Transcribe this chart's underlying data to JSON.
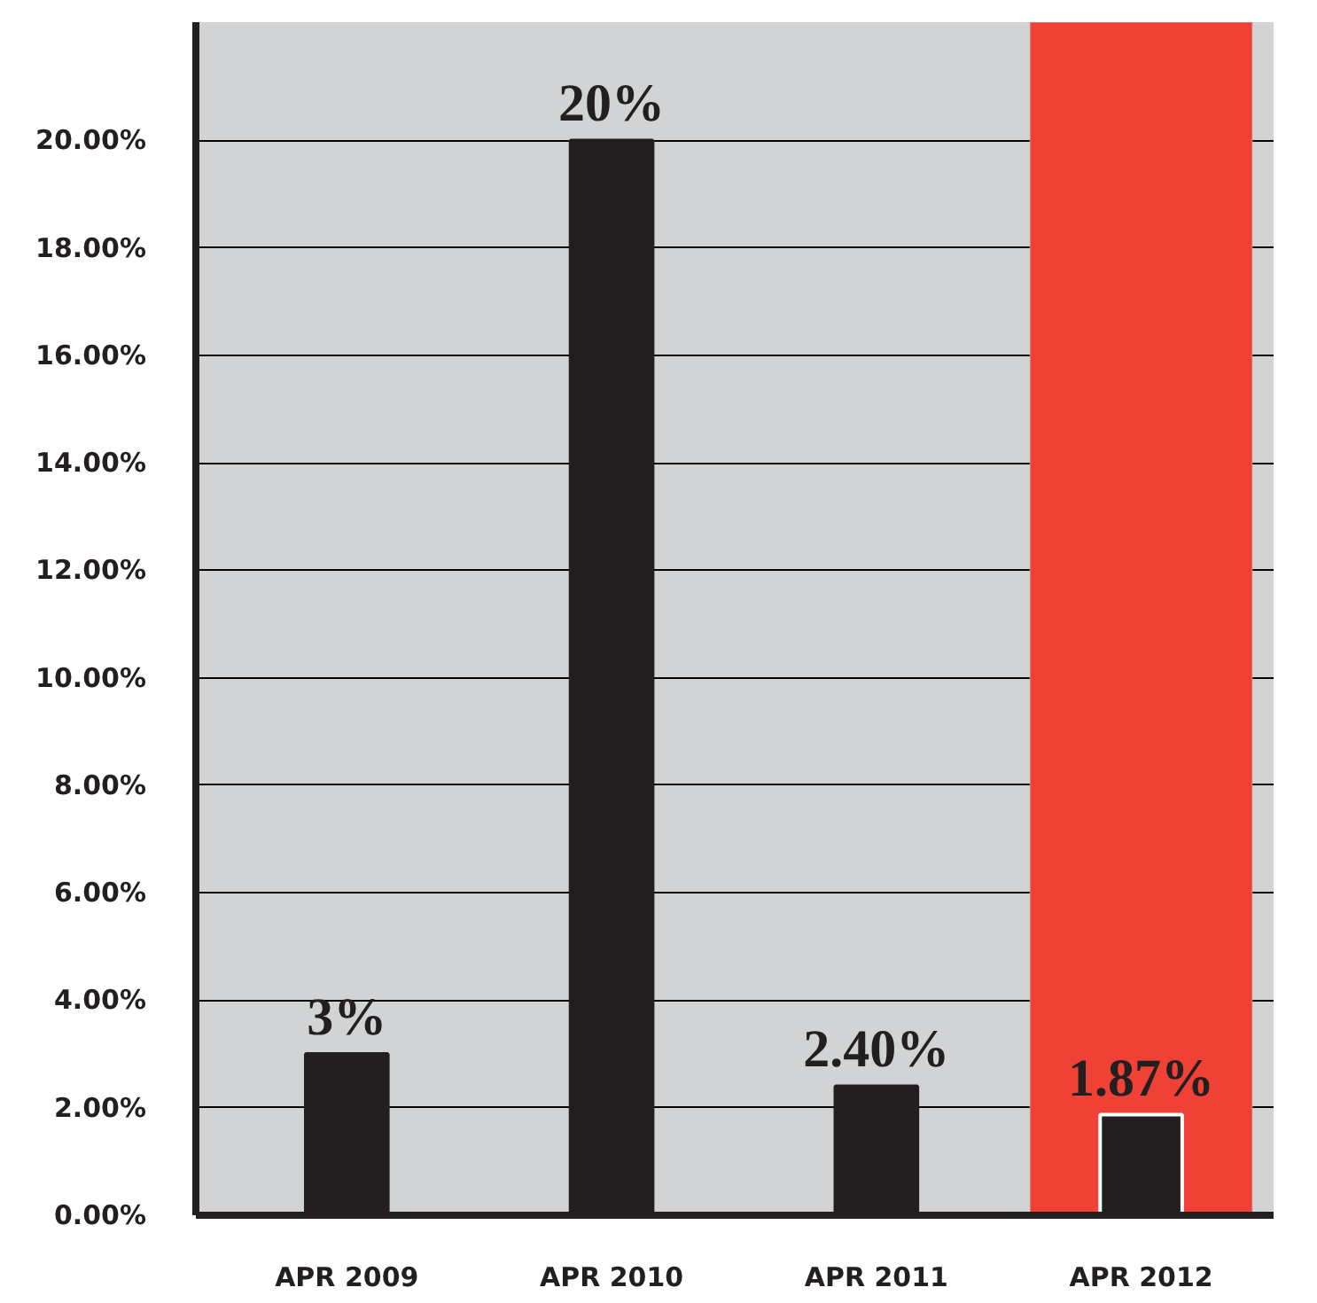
{
  "chart_data": {
    "type": "bar",
    "categories": [
      "APR 2009",
      "APR 2010",
      "APR 2011",
      "APR 2012"
    ],
    "values": [
      3,
      20,
      2.4,
      1.87
    ],
    "value_labels": [
      "3%",
      "20%",
      "2.40%",
      "1.87%"
    ],
    "colors": [
      "#231f20",
      "#231f20",
      "#231f20",
      "#231f20"
    ],
    "ylim": [
      0,
      22.2
    ],
    "yticks": [
      {
        "value": 0,
        "label": "0.00%"
      },
      {
        "value": 2,
        "label": "2.00%"
      },
      {
        "value": 4,
        "label": "4.00%"
      },
      {
        "value": 6,
        "label": "6.00%"
      },
      {
        "value": 8,
        "label": "8.00%"
      },
      {
        "value": 10,
        "label": "10.00%"
      },
      {
        "value": 12,
        "label": "12.00%"
      },
      {
        "value": 14,
        "label": "14.00%"
      },
      {
        "value": 16,
        "label": "16.00%"
      },
      {
        "value": 18,
        "label": "18.00%"
      },
      {
        "value": 20,
        "label": "20.00%"
      }
    ],
    "grid": "y",
    "bands": [
      {
        "axis": "x",
        "from": "APR 2012",
        "to": "APR 2012",
        "color": "#ef4136"
      }
    ]
  }
}
